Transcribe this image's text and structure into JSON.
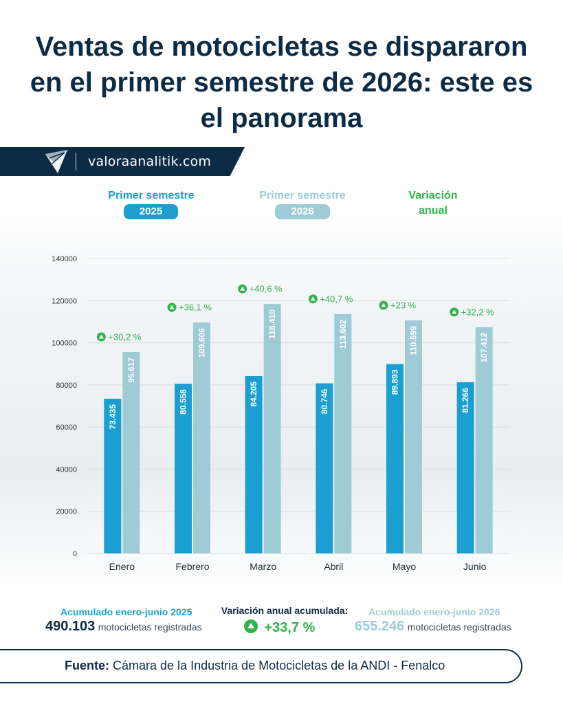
{
  "title": "Ventas de motocicletas se dispararon en el primer semestre de 2026: este es el panorama",
  "brand": {
    "site": "valoraanalitik.com"
  },
  "legend": {
    "series_2025_label": "Primer semestre",
    "series_2025_year": "2025",
    "series_2026_label": "Primer semestre",
    "series_2026_year": "2026",
    "variation_line1": "Variación",
    "variation_line2": "anual"
  },
  "colors": {
    "navy": "#0d2b45",
    "bar_2025": "#1a9fd0",
    "bar_2026": "#9ecbd6",
    "variation": "#2fb34a",
    "axis_text": "#333333"
  },
  "chart_data": {
    "type": "bar",
    "categories": [
      "Enero",
      "Febrero",
      "Marzo",
      "Abril",
      "Mayo",
      "Junio"
    ],
    "series": [
      {
        "values": [
          73435,
          80558,
          84205,
          80746,
          89893,
          81266
        ],
        "labels": [
          "73.435",
          "80.558",
          "84.205",
          "80.746",
          "89.893",
          "81.266"
        ]
      },
      {
        "values": [
          95617,
          109606,
          118410,
          113602,
          110599,
          107412
        ],
        "labels": [
          "95.617",
          "109.606",
          "118.410",
          "113.602",
          "110.599",
          "107.412"
        ]
      }
    ],
    "variation_labels": [
      "+30,2 %",
      "+36,1 %",
      "+40,6 %",
      "+40,7 %",
      "+23 %",
      "+32,2 %"
    ],
    "yticks": [
      0,
      20000,
      40000,
      60000,
      80000,
      100000,
      120000,
      140000
    ],
    "ylim": [
      0,
      140000
    ],
    "grid": true
  },
  "summary": {
    "left_label": "Acumulado enero-junio 2025",
    "left_value": "490.103",
    "left_unit": "motocicletas registradas",
    "center_label": "Variación anual acumulada:",
    "center_value": "+33,7 %",
    "right_label": "Acumulado enero-junio 2026",
    "right_value": "655.246",
    "right_unit": "motocicletas registradas"
  },
  "source": {
    "prefix": "Fuente:",
    "text": "Cámara de la Industria de Motocicletas de la ANDI - Fenalco"
  }
}
